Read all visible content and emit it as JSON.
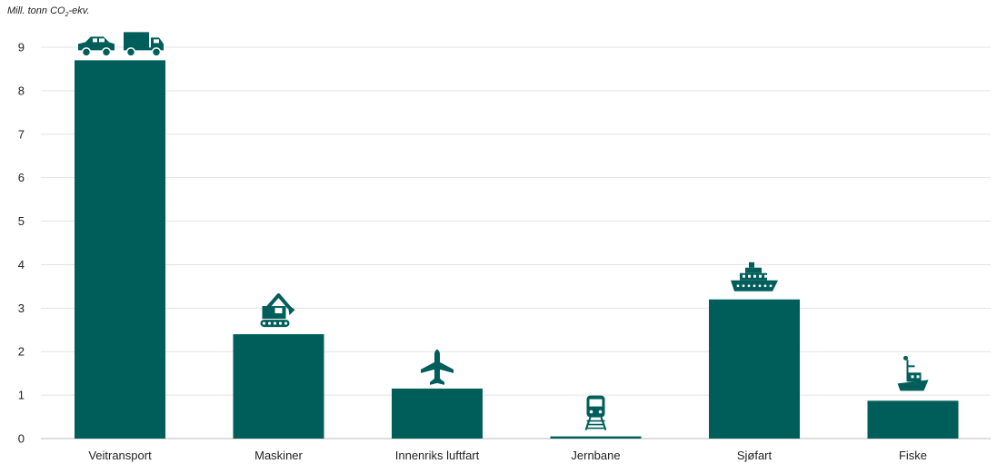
{
  "chart_data": {
    "type": "bar",
    "ylabel": "Mill. tonn CO2-ekv.",
    "ylim": [
      0,
      9
    ],
    "yticks": [
      0,
      1,
      2,
      3,
      4,
      5,
      6,
      7,
      8,
      9
    ],
    "grid": true,
    "bar_color": "#005e5a",
    "categories": [
      "Veitransport",
      "Maskiner",
      "Innenriks luftfart",
      "Jernbane",
      "Sjøfart",
      "Fiske"
    ],
    "values": [
      8.7,
      2.4,
      1.15,
      0.05,
      3.2,
      0.87
    ],
    "icons": [
      [
        "car-icon",
        "truck-icon"
      ],
      [
        "excavator-icon"
      ],
      [
        "airplane-icon"
      ],
      [
        "train-icon"
      ],
      [
        "ship-icon"
      ],
      [
        "fishing-boat-icon"
      ]
    ]
  },
  "unit_label": {
    "main": "Mill. tonn CO",
    "sub": "2",
    "suffix": "-ekv."
  }
}
